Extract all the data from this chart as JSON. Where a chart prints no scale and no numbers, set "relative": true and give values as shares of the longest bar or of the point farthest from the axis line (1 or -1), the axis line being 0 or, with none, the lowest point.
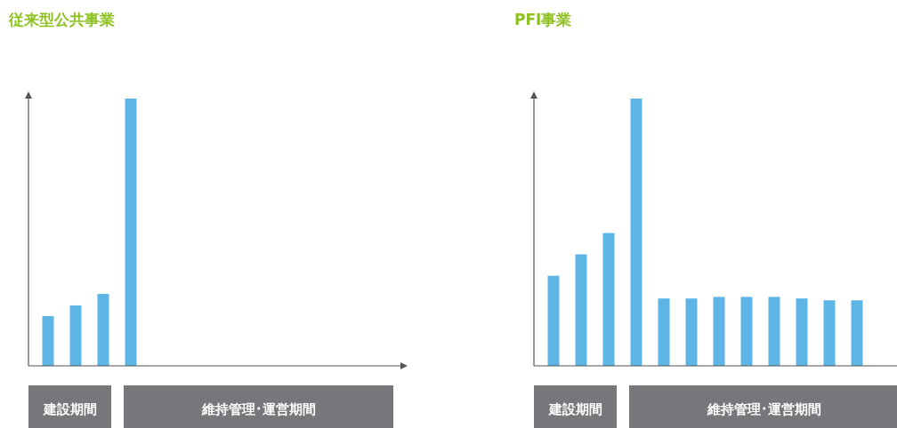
{
  "chart_data": [
    {
      "type": "bar",
      "title": "従来型公共事業",
      "relative": true,
      "categories": [
        null,
        null,
        null,
        null
      ],
      "values": [
        0.186,
        0.226,
        0.269,
        1
      ],
      "color": "#5db5e6",
      "annotations": [
        "建設期間",
        "維持管理･運営期間"
      ]
    },
    {
      "type": "bar",
      "title": "PFI事業",
      "relative": true,
      "categories": [
        null,
        null,
        null,
        null,
        null,
        null,
        null,
        null,
        null,
        null,
        null,
        null
      ],
      "values": [
        0.337,
        0.417,
        0.497,
        1,
        0.252,
        0.252,
        0.258,
        0.258,
        0.258,
        0.252,
        0.245,
        0.245
      ],
      "color": "#5db5e6",
      "annotations": [
        "建設期間",
        "維持管理･運営期間"
      ]
    }
  ]
}
